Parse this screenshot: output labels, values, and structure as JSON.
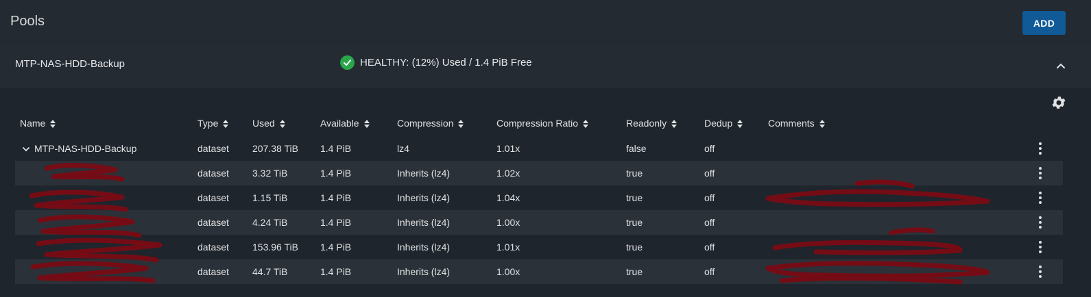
{
  "header": {
    "title": "Pools",
    "add_label": "ADD"
  },
  "pool": {
    "name": "MTP-NAS-HDD-Backup",
    "status": "HEALTHY: (12%) Used / 1.4 PiB Free"
  },
  "table": {
    "columns": [
      "Name",
      "Type",
      "Used",
      "Available",
      "Compression",
      "Compression Ratio",
      "Readonly",
      "Dedup",
      "Comments"
    ],
    "rows": [
      {
        "name": "MTP-NAS-HDD-Backup",
        "type": "dataset",
        "used": "207.38 TiB",
        "available": "1.4 PiB",
        "compression": "lz4",
        "ratio": "1.01x",
        "readonly": "false",
        "dedup": "off",
        "comments": ""
      },
      {
        "name": "",
        "type": "dataset",
        "used": "3.32 TiB",
        "available": "1.4 PiB",
        "compression": "Inherits (lz4)",
        "ratio": "1.02x",
        "readonly": "true",
        "dedup": "off",
        "comments": ""
      },
      {
        "name": "",
        "type": "dataset",
        "used": "1.15 TiB",
        "available": "1.4 PiB",
        "compression": "Inherits (lz4)",
        "ratio": "1.04x",
        "readonly": "true",
        "dedup": "off",
        "comments": ""
      },
      {
        "name": "",
        "type": "dataset",
        "used": "4.24 TiB",
        "available": "1.4 PiB",
        "compression": "Inherits (lz4)",
        "ratio": "1.00x",
        "readonly": "true",
        "dedup": "off",
        "comments": ""
      },
      {
        "name": "",
        "type": "dataset",
        "used": "153.96 TiB",
        "available": "1.4 PiB",
        "compression": "Inherits (lz4)",
        "ratio": "1.01x",
        "readonly": "true",
        "dedup": "off",
        "comments": ""
      },
      {
        "name": "",
        "type": "dataset",
        "used": "44.7 TiB",
        "available": "1.4 PiB",
        "compression": "Inherits (lz4)",
        "ratio": "1.00x",
        "readonly": "true",
        "dedup": "off",
        "comments": ""
      }
    ]
  },
  "colors": {
    "accent": "#0f5a97",
    "healthy": "#2aa64a",
    "redaction": "#7a0b14"
  }
}
